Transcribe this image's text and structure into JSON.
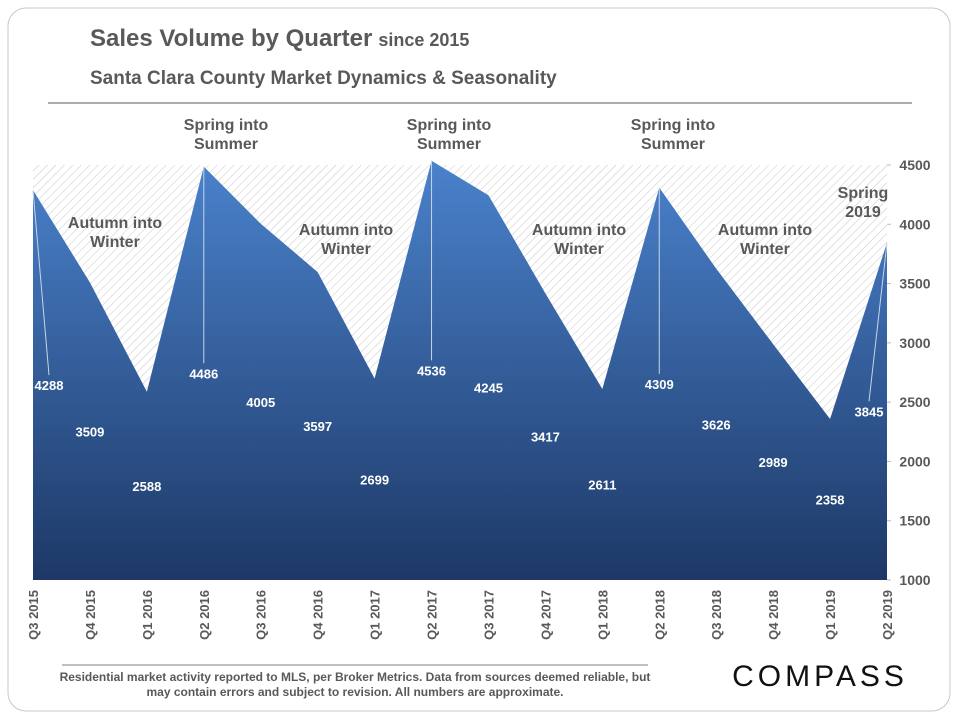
{
  "chart_data": {
    "type": "area",
    "title": "Sales Volume by Quarter",
    "title_suffix": "since 2015",
    "subtitle": "Santa Clara County Market Dynamics & Seasonality",
    "categories": [
      "Q3 2015",
      "Q4 2015",
      "Q1 2016",
      "Q2 2016",
      "Q3 2016",
      "Q4 2016",
      "Q1 2017",
      "Q2 2017",
      "Q3 2017",
      "Q4 2017",
      "Q1 2018",
      "Q2 2018",
      "Q3 2018",
      "Q4 2018",
      "Q1 2019",
      "Q2 2019"
    ],
    "values": [
      4288,
      3509,
      2588,
      4486,
      4005,
      3597,
      2699,
      4536,
      4245,
      3417,
      2611,
      4309,
      3626,
      2989,
      2358,
      3845
    ],
    "color_top": "#4a82cc",
    "color_bottom": "#1d3866",
    "ylim": [
      1000,
      4500
    ],
    "yticks": [
      1000,
      1500,
      2000,
      2500,
      3000,
      3500,
      4000,
      4500
    ],
    "y_axis_side": "right",
    "annotations": [
      "Autumn into Winter",
      "Spring into Summer",
      "Autumn into Winter",
      "Spring into Summer",
      "Autumn into Winter",
      "Spring into Summer",
      "Autumn into Winter",
      "Spring 2019"
    ],
    "footnote": "Residential market activity reported to MLS, per Broker Metrics. Data from sources deemed reliable, but may contain errors and subject to revision. All numbers are approximate.",
    "logo": "COMPASS"
  }
}
